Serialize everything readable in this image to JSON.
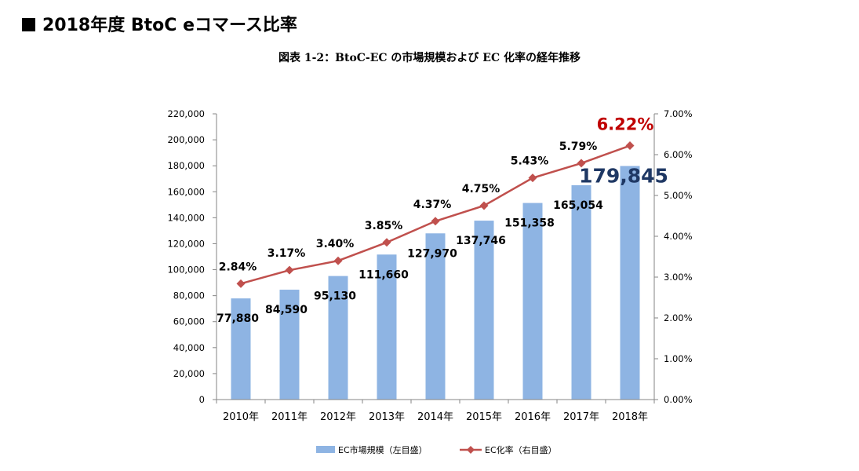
{
  "page": {
    "title": "2018年度 BtoC eコマース比率"
  },
  "chart_data": {
    "type": "bar+line",
    "title": "図表 1-2：BtoC-EC の市場規模および EC 化率の経年推移",
    "categories": [
      "2010年",
      "2011年",
      "2012年",
      "2013年",
      "2014年",
      "2015年",
      "2016年",
      "2017年",
      "2018年"
    ],
    "series": [
      {
        "name": "EC市場規模（左目盛）",
        "type": "bar",
        "axis": "left",
        "color": "#8EB4E3",
        "values": [
          77880,
          84590,
          95130,
          111660,
          127970,
          137746,
          151358,
          165054,
          179845
        ],
        "labels": [
          "77,880",
          "84,590",
          "95,130",
          "111,660",
          "127,970",
          "137,746",
          "151,358",
          "165,054",
          "179,845"
        ]
      },
      {
        "name": "EC化率（右目盛）",
        "type": "line",
        "axis": "right",
        "color": "#C0504D",
        "values": [
          2.84,
          3.17,
          3.4,
          3.85,
          4.37,
          4.75,
          5.43,
          5.79,
          6.22
        ],
        "labels": [
          "2.84%",
          "3.17%",
          "3.40%",
          "3.85%",
          "4.37%",
          "4.75%",
          "5.43%",
          "5.79%",
          "6.22%"
        ]
      }
    ],
    "left_axis": {
      "ylim": [
        0,
        220000
      ],
      "ticks": [
        0,
        20000,
        40000,
        60000,
        80000,
        100000,
        120000,
        140000,
        160000,
        180000,
        200000,
        220000
      ],
      "tick_labels": [
        "0",
        "20,000",
        "40,000",
        "60,000",
        "80,000",
        "100,000",
        "120,000",
        "140,000",
        "160,000",
        "180,000",
        "200,000",
        "220,000"
      ]
    },
    "right_axis": {
      "ylim": [
        0,
        7
      ],
      "ticks": [
        0,
        1,
        2,
        3,
        4,
        5,
        6,
        7
      ],
      "tick_labels": [
        "0.00%",
        "1.00%",
        "2.00%",
        "3.00%",
        "4.00%",
        "5.00%",
        "6.00%",
        "7.00%"
      ]
    },
    "highlight": {
      "bar_label_color": "#1F3864",
      "line_label_color": "#C00000"
    },
    "grid": false,
    "legend": "bottom-center"
  }
}
